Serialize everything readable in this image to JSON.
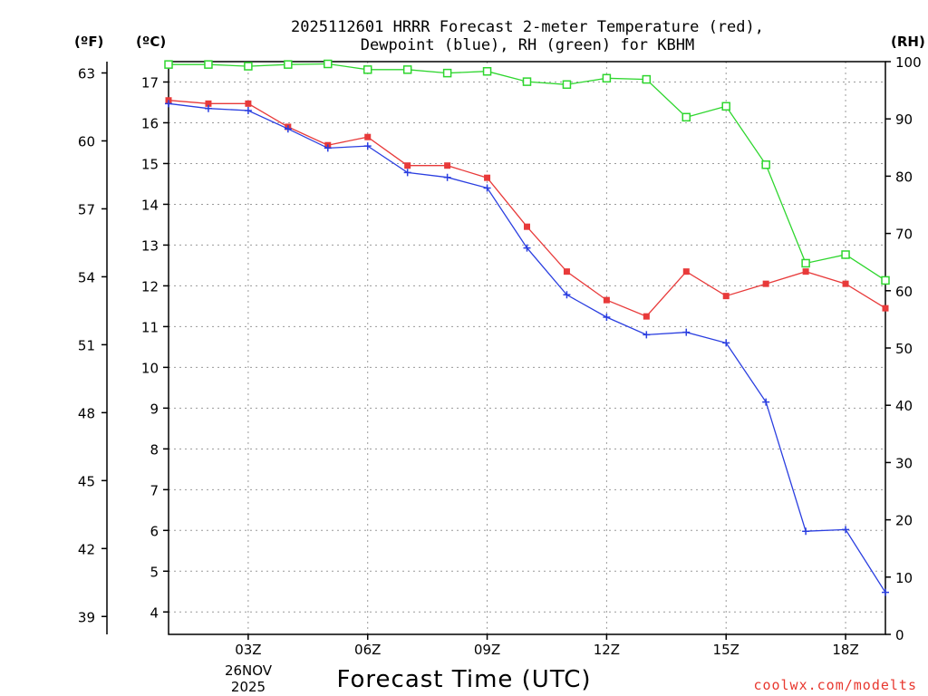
{
  "chart_data": {
    "type": "line",
    "title_line1": "2025112601 HRRR Forecast 2-meter Temperature (red),",
    "title_line2": "Dewpoint (blue), RH (green) for KBHM",
    "units": {
      "fahrenheit": "(ºF)",
      "celsius": "(ºC)",
      "rh": "(RH)"
    },
    "xlabel": "Forecast Time (UTC)",
    "date_label": [
      "26NOV",
      "2025"
    ],
    "credit": "coolwx.com/modelts",
    "x_hours": [
      1,
      2,
      3,
      4,
      5,
      6,
      7,
      8,
      9,
      10,
      11,
      12,
      13,
      14,
      15,
      16,
      17,
      18,
      19
    ],
    "xlim": [
      1,
      19
    ],
    "x_ticks": [
      {
        "hour": 3,
        "label": "03Z"
      },
      {
        "hour": 6,
        "label": "06Z"
      },
      {
        "hour": 9,
        "label": "09Z"
      },
      {
        "hour": 12,
        "label": "12Z"
      },
      {
        "hour": 15,
        "label": "15Z"
      },
      {
        "hour": 18,
        "label": "18Z"
      }
    ],
    "celsius_axis": {
      "lim": [
        3.45,
        17.5
      ],
      "ticks": [
        4,
        5,
        6,
        7,
        8,
        9,
        10,
        11,
        12,
        13,
        14,
        15,
        16,
        17
      ]
    },
    "fahrenheit_axis": {
      "ticks": [
        39,
        42,
        45,
        48,
        51,
        54,
        57,
        60,
        63
      ]
    },
    "rh_axis": {
      "lim": [
        0,
        100
      ],
      "ticks": [
        0,
        10,
        20,
        30,
        40,
        50,
        60,
        70,
        80,
        90,
        100
      ]
    },
    "series": [
      {
        "name": "Temperature",
        "color": "#e83a3a",
        "marker": "filled-square",
        "axis": "celsius",
        "values": [
          16.55,
          16.47,
          16.47,
          15.9,
          15.45,
          15.65,
          14.95,
          14.95,
          14.65,
          13.45,
          12.35,
          11.65,
          11.25,
          12.35,
          11.75,
          12.05,
          12.35,
          12.05,
          11.45
        ]
      },
      {
        "name": "Dewpoint",
        "color": "#2a3ee0",
        "marker": "plus",
        "axis": "celsius",
        "values": [
          16.47,
          16.35,
          16.3,
          15.85,
          15.38,
          15.43,
          14.78,
          14.66,
          14.4,
          12.93,
          11.78,
          11.23,
          10.8,
          10.86,
          10.6,
          9.15,
          5.98,
          6.02,
          4.48
        ]
      },
      {
        "name": "RH",
        "color": "#2ed62e",
        "marker": "open-square",
        "axis": "rh",
        "values": [
          99.5,
          99.5,
          99.2,
          99.5,
          99.6,
          98.6,
          98.6,
          98.0,
          98.3,
          96.5,
          96.0,
          97.1,
          96.9,
          90.3,
          92.2,
          82.0,
          64.8,
          66.3,
          61.8
        ]
      }
    ]
  }
}
